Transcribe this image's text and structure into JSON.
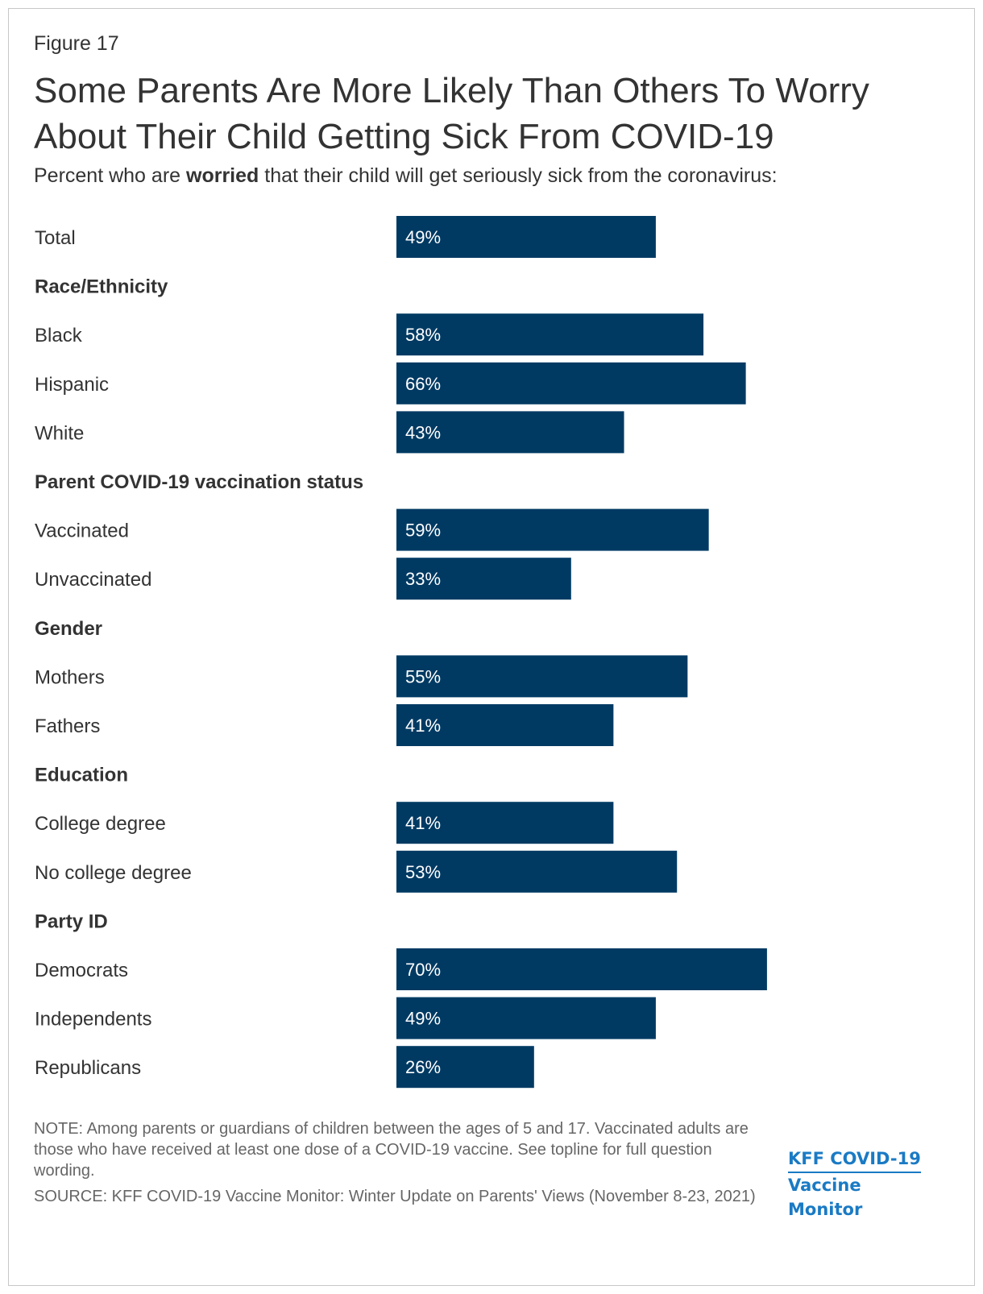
{
  "figure_label": "Figure 17",
  "title": "Some Parents Are More Likely Than Others To Worry About Their Child Getting Sick From COVID-19",
  "subtitle": {
    "before": "Percent who are ",
    "bold": "worried",
    "after": " that their child will get seriously sick from the coronavirus:"
  },
  "colors": {
    "bar": "#003a63",
    "text": "#333333",
    "note": "#666666",
    "logo": "#1a7ac4"
  },
  "chart_data": {
    "type": "bar",
    "orientation": "horizontal",
    "xlim": [
      0,
      100
    ],
    "rows": [
      {
        "kind": "bar",
        "label": "Total",
        "value": 49,
        "display": "49%"
      },
      {
        "kind": "group",
        "label": "Race/Ethnicity"
      },
      {
        "kind": "bar",
        "label": "Black",
        "value": 58,
        "display": "58%"
      },
      {
        "kind": "bar",
        "label": "Hispanic",
        "value": 66,
        "display": "66%"
      },
      {
        "kind": "bar",
        "label": "White",
        "value": 43,
        "display": "43%"
      },
      {
        "kind": "group",
        "label": "Parent COVID-19 vaccination status"
      },
      {
        "kind": "bar",
        "label": "Vaccinated",
        "value": 59,
        "display": "59%"
      },
      {
        "kind": "bar",
        "label": "Unvaccinated",
        "value": 33,
        "display": "33%"
      },
      {
        "kind": "group",
        "label": "Gender"
      },
      {
        "kind": "bar",
        "label": "Mothers",
        "value": 55,
        "display": "55%"
      },
      {
        "kind": "bar",
        "label": "Fathers",
        "value": 41,
        "display": "41%"
      },
      {
        "kind": "group",
        "label": "Education"
      },
      {
        "kind": "bar",
        "label": "College degree",
        "value": 41,
        "display": "41%"
      },
      {
        "kind": "bar",
        "label": "No college degree",
        "value": 53,
        "display": "53%"
      },
      {
        "kind": "group",
        "label": "Party ID"
      },
      {
        "kind": "bar",
        "label": "Democrats",
        "value": 70,
        "display": "70%"
      },
      {
        "kind": "bar",
        "label": "Independents",
        "value": 49,
        "display": "49%"
      },
      {
        "kind": "bar",
        "label": "Republicans",
        "value": 26,
        "display": "26%"
      }
    ]
  },
  "note": "NOTE: Among parents or guardians of children between the ages of 5 and 17. Vaccinated adults are those who have received at least one dose of a COVID-19 vaccine. See topline for full question wording.",
  "source": "SOURCE: KFF COVID-19 Vaccine Monitor: Winter Update on Parents' Views (November 8-23, 2021)",
  "logo": {
    "line1": "KFF COVID-19",
    "line2": "Vaccine Monitor"
  }
}
